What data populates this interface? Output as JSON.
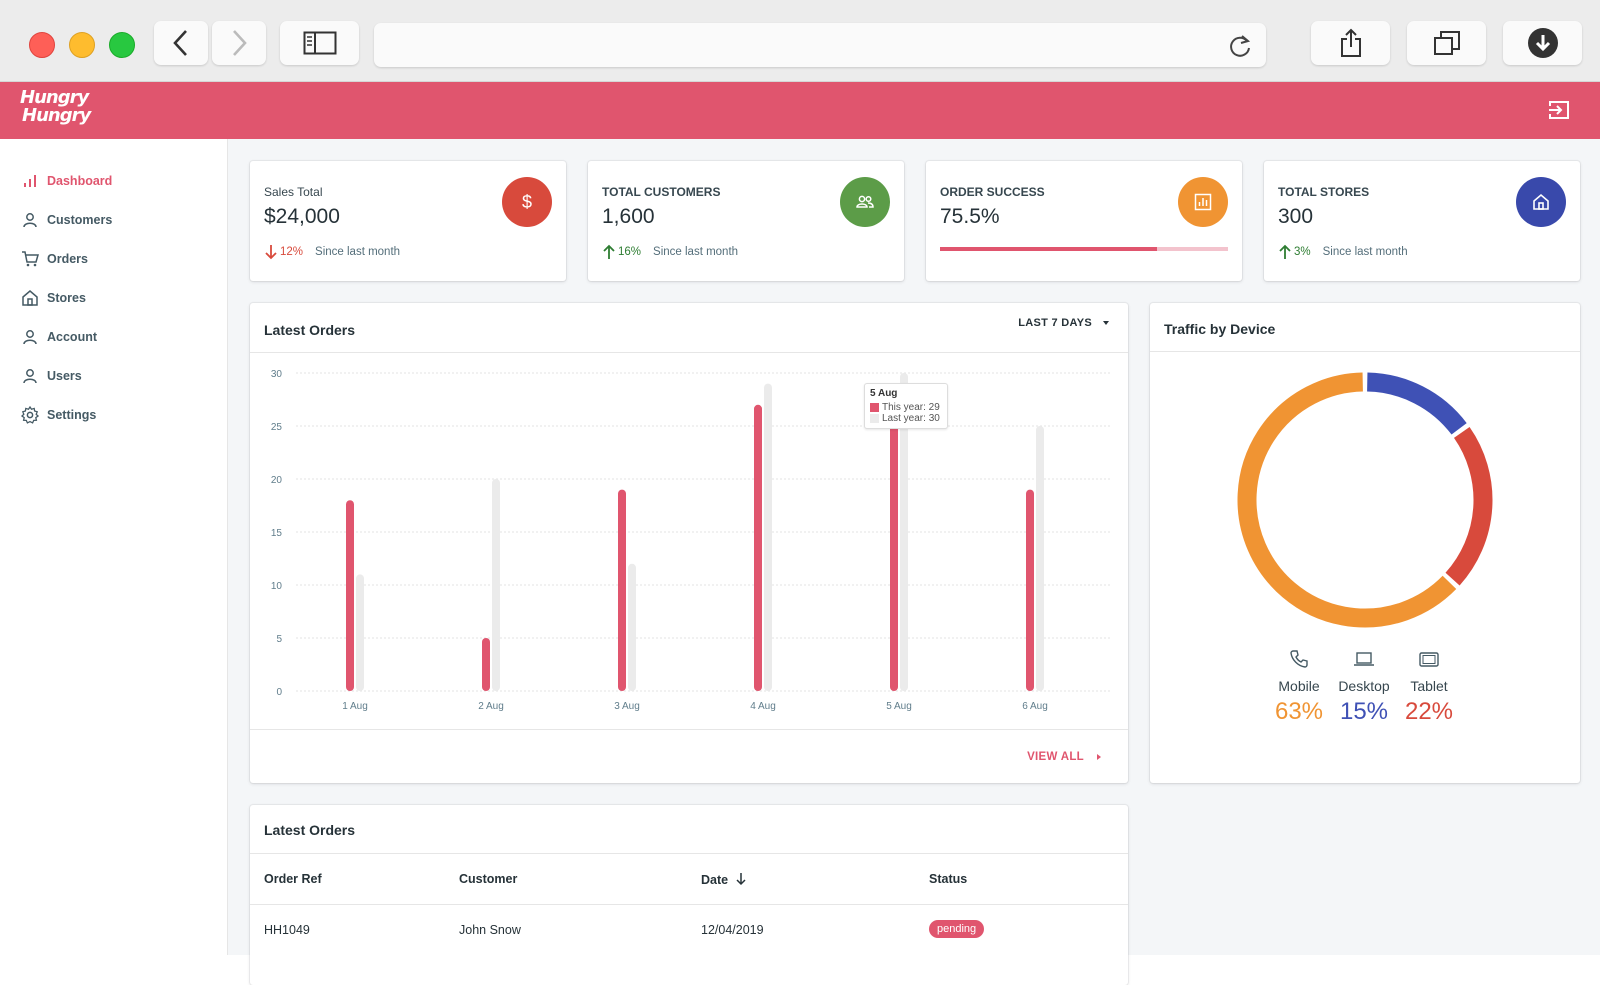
{
  "brand": {
    "line1": "Hungry",
    "line2": "Hungry",
    "color": "#e0556e"
  },
  "sidebar": {
    "items": [
      {
        "label": "Dashboard",
        "icon": "bar-chart-icon",
        "active": true
      },
      {
        "label": "Customers",
        "icon": "person-icon"
      },
      {
        "label": "Orders",
        "icon": "cart-icon"
      },
      {
        "label": "Stores",
        "icon": "home-icon"
      },
      {
        "label": "Account",
        "icon": "person-icon"
      },
      {
        "label": "Users",
        "icon": "person-icon"
      },
      {
        "label": "Settings",
        "icon": "gear-icon"
      }
    ]
  },
  "stats": {
    "sales": {
      "label": "Sales Total",
      "value": "$24,000",
      "delta": "12%",
      "since": "Since last month",
      "color": "#d84a3c"
    },
    "customers": {
      "label": "TOTAL CUSTOMERS",
      "value": "1,600",
      "delta": "16%",
      "since": "Since last month",
      "color": "#5c9c48"
    },
    "orders": {
      "label": "ORDER SUCCESS",
      "value": "75.5%",
      "progress": 75.5,
      "color": "#f09433"
    },
    "stores": {
      "label": "TOTAL STORES",
      "value": "300",
      "delta": "3%",
      "since": "Since last month",
      "color": "#3949ab"
    }
  },
  "latest_orders_chart": {
    "title": "Latest Orders",
    "range_label": "LAST 7 DAYS",
    "view_all": "VIEW ALL",
    "tooltip": {
      "title": "5 Aug",
      "this_year": "This year: 29",
      "last_year": "Last year: 30"
    }
  },
  "chart_data": {
    "type": "bar",
    "categories": [
      "1 Aug",
      "2 Aug",
      "3 Aug",
      "4 Aug",
      "5 Aug",
      "6 Aug"
    ],
    "series": [
      {
        "name": "This year",
        "values": [
          18,
          5,
          19,
          27,
          29,
          19
        ],
        "color": "#e0556e"
      },
      {
        "name": "Last year",
        "values": [
          11,
          20,
          12,
          29,
          30,
          25
        ],
        "color": "#ebebeb"
      }
    ],
    "ylim": [
      0,
      30
    ],
    "yticks": [
      0,
      5,
      10,
      15,
      20,
      25,
      30
    ],
    "grid": true
  },
  "traffic": {
    "title": "Traffic by Device",
    "devices": [
      {
        "label": "Mobile",
        "value": "63%",
        "pct": 63,
        "color": "#f09433",
        "icon": "phone-icon"
      },
      {
        "label": "Desktop",
        "value": "15%",
        "pct": 15,
        "color": "#3f51b5",
        "icon": "laptop-icon"
      },
      {
        "label": "Tablet",
        "value": "22%",
        "pct": 22,
        "color": "#d84a3c",
        "icon": "tablet-icon"
      }
    ]
  },
  "orders_table": {
    "title": "Latest Orders",
    "columns": [
      "Order Ref",
      "Customer",
      "Date",
      "Status"
    ],
    "rows": [
      {
        "ref": "HH1049",
        "customer": "John Snow",
        "date": "12/04/2019",
        "status": "pending"
      }
    ]
  }
}
